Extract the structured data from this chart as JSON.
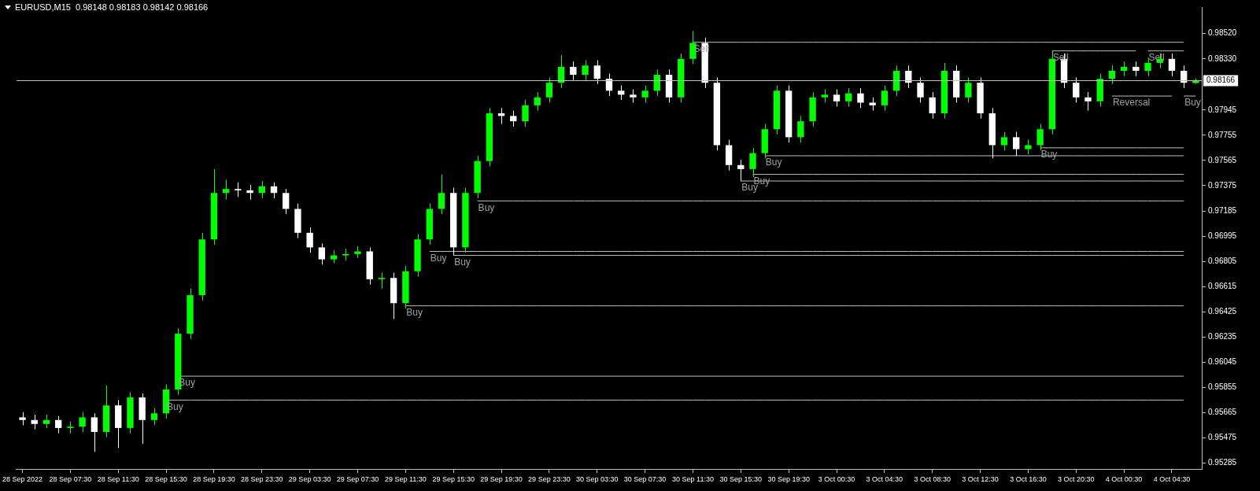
{
  "chart_data": {
    "type": "candlestick",
    "title": "EURUSD,M15  0.98148 0.98183 0.98142 0.98166",
    "categories": [
      "28 Sep 2022",
      null,
      null,
      null,
      "28 Sep 07:30",
      null,
      null,
      null,
      "28 Sep 11:30",
      null,
      null,
      null,
      "28 Sep 15:30",
      null,
      null,
      null,
      "28 Sep 19:30",
      null,
      null,
      null,
      "28 Sep 23:30",
      null,
      null,
      null,
      "29 Sep 03:30",
      null,
      null,
      null,
      "29 Sep 07:30",
      null,
      null,
      null,
      "29 Sep 11:30",
      null,
      null,
      null,
      "29 Sep 15:30",
      null,
      null,
      null,
      "29 Sep 19:30",
      null,
      null,
      null,
      "29 Sep 23:30",
      null,
      null,
      null,
      "30 Sep 03:30",
      null,
      null,
      null,
      "30 Sep 07:30",
      null,
      null,
      null,
      "30 Sep 11:30",
      null,
      null,
      null,
      "30 Sep 15:30",
      null,
      null,
      null,
      "30 Sep 19:30",
      null,
      null,
      null,
      "3 Oct 00:30",
      null,
      null,
      null,
      "3 Oct 04:30",
      null,
      null,
      null,
      "3 Oct 08:30",
      null,
      null,
      null,
      "3 Oct 12:30",
      null,
      null,
      null,
      "3 Oct 16:30",
      null,
      null,
      null,
      "3 Oct 20:30",
      null,
      null,
      null,
      "4 Oct 00:30",
      null,
      null,
      null,
      "4 Oct 04:30",
      null,
      null
    ],
    "ohlc": [
      [
        0.9563,
        0.9567,
        0.9557,
        0.9561
      ],
      [
        0.9561,
        0.9565,
        0.9554,
        0.9558
      ],
      [
        0.9558,
        0.9565,
        0.9555,
        0.9561
      ],
      [
        0.9561,
        0.9564,
        0.9551,
        0.9555
      ],
      [
        0.9555,
        0.956,
        0.9551,
        0.9556
      ],
      [
        0.9556,
        0.9567,
        0.9552,
        0.9563
      ],
      [
        0.9563,
        0.9566,
        0.9537,
        0.9552
      ],
      [
        0.9552,
        0.9587,
        0.9548,
        0.9572
      ],
      [
        0.9572,
        0.9576,
        0.954,
        0.9555
      ],
      [
        0.9555,
        0.9582,
        0.9551,
        0.9578
      ],
      [
        0.9578,
        0.9581,
        0.9543,
        0.9561
      ],
      [
        0.9561,
        0.957,
        0.9557,
        0.9566
      ],
      [
        0.9566,
        0.9588,
        0.9562,
        0.9584
      ],
      [
        0.9584,
        0.963,
        0.958,
        0.9626
      ],
      [
        0.9626,
        0.966,
        0.9622,
        0.9655
      ],
      [
        0.9655,
        0.9702,
        0.9651,
        0.9697
      ],
      [
        0.9697,
        0.975,
        0.9693,
        0.9732
      ],
      [
        0.9732,
        0.9742,
        0.9727,
        0.9735
      ],
      [
        0.9735,
        0.974,
        0.9729,
        0.9734
      ],
      [
        0.9734,
        0.9738,
        0.9727,
        0.9732
      ],
      [
        0.9732,
        0.9741,
        0.9728,
        0.9737
      ],
      [
        0.9737,
        0.974,
        0.9728,
        0.9732
      ],
      [
        0.9732,
        0.9735,
        0.9716,
        0.972
      ],
      [
        0.972,
        0.9724,
        0.9698,
        0.9702
      ],
      [
        0.9702,
        0.9706,
        0.9687,
        0.9691
      ],
      [
        0.9691,
        0.9694,
        0.9678,
        0.9682
      ],
      [
        0.9682,
        0.9689,
        0.9679,
        0.9685
      ],
      [
        0.9685,
        0.969,
        0.9681,
        0.9686
      ],
      [
        0.9686,
        0.9692,
        0.9683,
        0.9688
      ],
      [
        0.9688,
        0.9691,
        0.9663,
        0.9667
      ],
      [
        0.9667,
        0.9672,
        0.966,
        0.9668
      ],
      [
        0.9668,
        0.9672,
        0.9637,
        0.9649
      ],
      [
        0.9649,
        0.9677,
        0.9645,
        0.9673
      ],
      [
        0.9673,
        0.9701,
        0.9669,
        0.9697
      ],
      [
        0.9697,
        0.9724,
        0.9693,
        0.972
      ],
      [
        0.972,
        0.9746,
        0.9716,
        0.9732
      ],
      [
        0.9732,
        0.9736,
        0.9685,
        0.9691
      ],
      [
        0.9691,
        0.9736,
        0.9687,
        0.9732
      ],
      [
        0.9732,
        0.976,
        0.9728,
        0.9756
      ],
      [
        0.9756,
        0.9796,
        0.9752,
        0.9792
      ],
      [
        0.9792,
        0.9796,
        0.9784,
        0.979
      ],
      [
        0.979,
        0.9794,
        0.9782,
        0.9786
      ],
      [
        0.9786,
        0.9802,
        0.9782,
        0.9798
      ],
      [
        0.9798,
        0.9808,
        0.9794,
        0.9804
      ],
      [
        0.9804,
        0.9819,
        0.98,
        0.9815
      ],
      [
        0.9815,
        0.9836,
        0.9811,
        0.9827
      ],
      [
        0.9827,
        0.9831,
        0.9817,
        0.9821
      ],
      [
        0.9821,
        0.9832,
        0.9817,
        0.9828
      ],
      [
        0.9828,
        0.9832,
        0.9814,
        0.9818
      ],
      [
        0.9818,
        0.9822,
        0.9805,
        0.9809
      ],
      [
        0.9809,
        0.9813,
        0.9802,
        0.9806
      ],
      [
        0.9806,
        0.981,
        0.98,
        0.9804
      ],
      [
        0.9804,
        0.9813,
        0.98,
        0.9809
      ],
      [
        0.9809,
        0.9825,
        0.9805,
        0.9821
      ],
      [
        0.9821,
        0.9825,
        0.98,
        0.9804
      ],
      [
        0.9804,
        0.9837,
        0.98,
        0.9833
      ],
      [
        0.9833,
        0.9854,
        0.9829,
        0.9845
      ],
      [
        0.9845,
        0.9849,
        0.9811,
        0.9815
      ],
      [
        0.9815,
        0.9819,
        0.9764,
        0.9768
      ],
      [
        0.9768,
        0.9772,
        0.9749,
        0.9753
      ],
      [
        0.9753,
        0.9757,
        0.9741,
        0.975
      ],
      [
        0.975,
        0.9766,
        0.9744,
        0.9762
      ],
      [
        0.9762,
        0.9784,
        0.9758,
        0.978
      ],
      [
        0.978,
        0.9813,
        0.9776,
        0.9809
      ],
      [
        0.9809,
        0.9813,
        0.977,
        0.9774
      ],
      [
        0.9774,
        0.979,
        0.977,
        0.9786
      ],
      [
        0.9786,
        0.9808,
        0.9782,
        0.9804
      ],
      [
        0.9804,
        0.981,
        0.98,
        0.9806
      ],
      [
        0.9806,
        0.981,
        0.9797,
        0.9801
      ],
      [
        0.9801,
        0.9811,
        0.9797,
        0.9807
      ],
      [
        0.9807,
        0.9811,
        0.9796,
        0.98
      ],
      [
        0.98,
        0.9804,
        0.9794,
        0.9798
      ],
      [
        0.9798,
        0.9813,
        0.9794,
        0.9809
      ],
      [
        0.9809,
        0.9828,
        0.9805,
        0.9824
      ],
      [
        0.9824,
        0.9828,
        0.9811,
        0.9815
      ],
      [
        0.9815,
        0.9819,
        0.98,
        0.9804
      ],
      [
        0.9804,
        0.9808,
        0.9788,
        0.9792
      ],
      [
        0.9792,
        0.983,
        0.9788,
        0.9824
      ],
      [
        0.9824,
        0.9828,
        0.98,
        0.9804
      ],
      [
        0.9804,
        0.9819,
        0.98,
        0.9815
      ],
      [
        0.9815,
        0.9819,
        0.9788,
        0.9792
      ],
      [
        0.9792,
        0.9796,
        0.9758,
        0.9768
      ],
      [
        0.9768,
        0.9778,
        0.9764,
        0.9774
      ],
      [
        0.9774,
        0.9778,
        0.976,
        0.9765
      ],
      [
        0.9765,
        0.9772,
        0.9761,
        0.9768
      ],
      [
        0.9768,
        0.9784,
        0.9764,
        0.978
      ],
      [
        0.978,
        0.9839,
        0.9776,
        0.9833
      ],
      [
        0.9833,
        0.9837,
        0.9811,
        0.9815
      ],
      [
        0.9815,
        0.9819,
        0.98,
        0.9804
      ],
      [
        0.9804,
        0.9808,
        0.9794,
        0.9801
      ],
      [
        0.9801,
        0.9822,
        0.9797,
        0.9818
      ],
      [
        0.9818,
        0.9828,
        0.9814,
        0.9824
      ],
      [
        0.9824,
        0.9831,
        0.982,
        0.9827
      ],
      [
        0.9827,
        0.9831,
        0.982,
        0.9824
      ],
      [
        0.9824,
        0.9834,
        0.982,
        0.983
      ],
      [
        0.983,
        0.9837,
        0.9826,
        0.9833
      ],
      [
        0.9833,
        0.9837,
        0.982,
        0.9824
      ],
      [
        0.9824,
        0.9828,
        0.9811,
        0.9815
      ],
      [
        0.98148,
        0.98183,
        0.98142,
        0.98166
      ]
    ],
    "colors": [
      "#ffffff",
      "#ffffff",
      "#00ff00",
      "#ffffff",
      "#00ff00",
      "#00ff00",
      "#ffffff",
      "#00ff00",
      "#ffffff",
      "#00ff00",
      "#ffffff",
      "#00ff00",
      "#00ff00",
      "#00ff00",
      "#00ff00",
      "#00ff00",
      "#00ff00",
      "#00ff00",
      "#ffffff",
      "#ffffff",
      "#00ff00",
      "#ffffff",
      "#ffffff",
      "#ffffff",
      "#ffffff",
      "#ffffff",
      "#00ff00",
      "#00ff00",
      "#00ff00",
      "#ffffff",
      "#00ff00",
      "#ffffff",
      "#00ff00",
      "#00ff00",
      "#00ff00",
      "#00ff00",
      "#ffffff",
      "#00ff00",
      "#00ff00",
      "#00ff00",
      "#ffffff",
      "#ffffff",
      "#00ff00",
      "#00ff00",
      "#00ff00",
      "#00ff00",
      "#ffffff",
      "#00ff00",
      "#ffffff",
      "#ffffff",
      "#ffffff",
      "#ffffff",
      "#00ff00",
      "#00ff00",
      "#ffffff",
      "#00ff00",
      "#00ff00",
      "#ffffff",
      "#ffffff",
      "#ffffff",
      "#ffffff",
      "#00ff00",
      "#00ff00",
      "#00ff00",
      "#ffffff",
      "#00ff00",
      "#00ff00",
      "#00ff00",
      "#ffffff",
      "#00ff00",
      "#ffffff",
      "#ffffff",
      "#00ff00",
      "#00ff00",
      "#ffffff",
      "#ffffff",
      "#ffffff",
      "#00ff00",
      "#ffffff",
      "#00ff00",
      "#ffffff",
      "#ffffff",
      "#00ff00",
      "#ffffff",
      "#00ff00",
      "#00ff00",
      "#00ff00",
      "#ffffff",
      "#ffffff",
      "#ffffff",
      "#00ff00",
      "#00ff00",
      "#00ff00",
      "#ffffff",
      "#00ff00",
      "#00ff00",
      "#ffffff",
      "#ffffff",
      "#00ff00"
    ],
    "series": [
      {
        "type": "line",
        "name": "Sell",
        "color": "#c0c0c0",
        "values": [
          null,
          null,
          null,
          null,
          null,
          null,
          null,
          null,
          null,
          null,
          null,
          null,
          null,
          null,
          null,
          null,
          null,
          null,
          null,
          null,
          null,
          null,
          null,
          null,
          null,
          null,
          null,
          null,
          null,
          null,
          null,
          null,
          null,
          null,
          null,
          null,
          null,
          null,
          null,
          null,
          null,
          null,
          null,
          null,
          null,
          null,
          null,
          null,
          null,
          null,
          null,
          null,
          null,
          null,
          null,
          null,
          0.98455,
          0.98455,
          0.98455,
          0.98455,
          0.98455,
          0.98455,
          0.98455,
          0.98455,
          0.98455,
          0.98455,
          0.98455,
          0.98455,
          0.98455,
          0.98455,
          0.98455,
          0.98455,
          0.98455,
          0.98455,
          0.98455,
          0.98455,
          0.98455,
          0.98455,
          0.98455,
          0.98455,
          0.98455,
          0.98455,
          0.98455,
          0.98455,
          0.98455,
          0.98455,
          0.98455,
          0.98455,
          0.98455,
          0.98455,
          0.98455,
          0.98455,
          0.98455,
          0.98455,
          0.98455,
          0.98455,
          0.98455,
          0.98455,
          null
        ]
      },
      {
        "type": "line",
        "name": "Sell",
        "color": "#c0c0c0",
        "values": [
          null,
          null,
          null,
          null,
          null,
          null,
          null,
          null,
          null,
          null,
          null,
          null,
          null,
          null,
          null,
          null,
          null,
          null,
          null,
          null,
          null,
          null,
          null,
          null,
          null,
          null,
          null,
          null,
          null,
          null,
          null,
          null,
          null,
          null,
          null,
          null,
          null,
          null,
          null,
          null,
          null,
          null,
          null,
          null,
          null,
          null,
          null,
          null,
          null,
          null,
          null,
          null,
          null,
          null,
          null,
          null,
          null,
          null,
          null,
          null,
          null,
          null,
          null,
          null,
          null,
          null,
          null,
          null,
          null,
          null,
          null,
          null,
          null,
          null,
          null,
          null,
          null,
          null,
          null,
          null,
          null,
          null,
          null,
          null,
          null,
          null,
          0.9839,
          0.9839,
          0.9839,
          0.9839,
          0.9839,
          0.9839,
          0.9839,
          0.9839,
          null,
          null,
          null,
          null,
          null
        ]
      },
      {
        "type": "line",
        "name": "Sell",
        "color": "#c0c0c0",
        "values": [
          null,
          null,
          null,
          null,
          null,
          null,
          null,
          null,
          null,
          null,
          null,
          null,
          null,
          null,
          null,
          null,
          null,
          null,
          null,
          null,
          null,
          null,
          null,
          null,
          null,
          null,
          null,
          null,
          null,
          null,
          null,
          null,
          null,
          null,
          null,
          null,
          null,
          null,
          null,
          null,
          null,
          null,
          null,
          null,
          null,
          null,
          null,
          null,
          null,
          null,
          null,
          null,
          null,
          null,
          null,
          null,
          null,
          null,
          null,
          null,
          null,
          null,
          null,
          null,
          null,
          null,
          null,
          null,
          null,
          null,
          null,
          null,
          null,
          null,
          null,
          null,
          null,
          null,
          null,
          null,
          null,
          null,
          null,
          null,
          null,
          null,
          null,
          null,
          null,
          null,
          null,
          null,
          null,
          null,
          0.9839,
          0.9839,
          0.9839,
          0.9839,
          null
        ]
      },
      {
        "type": "line",
        "name": "Reversal",
        "color": "#c0c0c0",
        "values": [
          null,
          null,
          null,
          null,
          null,
          null,
          null,
          null,
          null,
          null,
          null,
          null,
          null,
          null,
          null,
          null,
          null,
          null,
          null,
          null,
          null,
          null,
          null,
          null,
          null,
          null,
          null,
          null,
          null,
          null,
          null,
          null,
          null,
          null,
          null,
          null,
          null,
          null,
          null,
          null,
          null,
          null,
          null,
          null,
          null,
          null,
          null,
          null,
          null,
          null,
          null,
          null,
          null,
          null,
          null,
          null,
          null,
          null,
          null,
          null,
          null,
          null,
          null,
          null,
          null,
          null,
          null,
          null,
          null,
          null,
          null,
          null,
          null,
          null,
          null,
          null,
          null,
          null,
          null,
          null,
          null,
          null,
          null,
          null,
          null,
          null,
          null,
          null,
          null,
          null,
          null,
          0.9805,
          0.9805,
          0.9805,
          0.9805,
          0.9805,
          0.9805,
          null,
          null
        ]
      },
      {
        "type": "line",
        "name": "Buy",
        "color": "#c0c0c0",
        "values": [
          null,
          null,
          null,
          null,
          null,
          null,
          null,
          null,
          null,
          null,
          null,
          null,
          null,
          null,
          null,
          null,
          null,
          null,
          null,
          null,
          null,
          null,
          null,
          null,
          null,
          null,
          null,
          null,
          null,
          null,
          null,
          null,
          null,
          null,
          null,
          null,
          null,
          null,
          null,
          null,
          null,
          null,
          null,
          null,
          null,
          null,
          null,
          null,
          null,
          null,
          null,
          null,
          null,
          null,
          null,
          null,
          null,
          null,
          null,
          null,
          null,
          null,
          null,
          null,
          null,
          null,
          null,
          null,
          null,
          null,
          null,
          null,
          null,
          null,
          null,
          null,
          null,
          null,
          null,
          null,
          null,
          null,
          null,
          null,
          null,
          null,
          null,
          null,
          null,
          null,
          null,
          null,
          null,
          null,
          null,
          null,
          null,
          0.9805,
          0.9805
        ]
      },
      {
        "type": "line",
        "name": "Buy",
        "color": "#c0c0c0",
        "values": [
          null,
          null,
          null,
          null,
          null,
          null,
          null,
          null,
          null,
          null,
          null,
          null,
          null,
          null,
          null,
          null,
          null,
          null,
          null,
          null,
          null,
          null,
          null,
          null,
          null,
          null,
          null,
          null,
          null,
          null,
          null,
          null,
          null,
          null,
          null,
          null,
          null,
          null,
          null,
          null,
          null,
          null,
          null,
          null,
          null,
          null,
          null,
          null,
          null,
          null,
          null,
          null,
          null,
          null,
          null,
          null,
          null,
          null,
          null,
          null,
          null,
          null,
          null,
          null,
          null,
          null,
          null,
          null,
          null,
          null,
          null,
          null,
          null,
          null,
          null,
          null,
          null,
          null,
          null,
          null,
          null,
          null,
          null,
          null,
          null,
          0.9766,
          0.9766,
          0.9766,
          0.9766,
          0.9766,
          0.9766,
          0.9766,
          0.9766,
          0.9766,
          0.9766,
          0.9766,
          0.9766,
          0.9766,
          null
        ]
      },
      {
        "type": "line",
        "name": "Buy",
        "color": "#c0c0c0",
        "values": [
          null,
          null,
          null,
          null,
          null,
          null,
          null,
          null,
          null,
          null,
          null,
          null,
          null,
          null,
          null,
          null,
          null,
          null,
          null,
          null,
          null,
          null,
          null,
          null,
          null,
          null,
          null,
          null,
          null,
          null,
          null,
          null,
          null,
          null,
          null,
          null,
          null,
          null,
          null,
          null,
          null,
          null,
          null,
          null,
          null,
          null,
          null,
          null,
          null,
          null,
          null,
          null,
          null,
          null,
          null,
          null,
          null,
          null,
          null,
          null,
          null,
          null,
          0.976,
          0.976,
          0.976,
          0.976,
          0.976,
          0.976,
          0.976,
          0.976,
          0.976,
          0.976,
          0.976,
          0.976,
          0.976,
          0.976,
          0.976,
          0.976,
          0.976,
          0.976,
          0.976,
          0.976,
          0.976,
          0.976,
          0.976,
          0.976,
          0.976,
          0.976,
          0.976,
          0.976,
          0.976,
          0.976,
          0.976,
          0.976,
          0.976,
          0.976,
          0.976,
          0.976,
          null
        ]
      },
      {
        "type": "line",
        "name": "Buy",
        "color": "#c0c0c0",
        "values": [
          null,
          null,
          null,
          null,
          null,
          null,
          null,
          null,
          null,
          null,
          null,
          null,
          null,
          null,
          null,
          null,
          null,
          null,
          null,
          null,
          null,
          null,
          null,
          null,
          null,
          null,
          null,
          null,
          null,
          null,
          null,
          null,
          null,
          null,
          null,
          null,
          null,
          null,
          null,
          null,
          null,
          null,
          null,
          null,
          null,
          null,
          null,
          null,
          null,
          null,
          null,
          null,
          null,
          null,
          null,
          null,
          null,
          null,
          null,
          null,
          null,
          0.9746,
          0.9746,
          0.9746,
          0.9746,
          0.9746,
          0.9746,
          0.9746,
          0.9746,
          0.9746,
          0.9746,
          0.9746,
          0.9746,
          0.9746,
          0.9746,
          0.9746,
          0.9746,
          0.9746,
          0.9746,
          0.9746,
          0.9746,
          0.9746,
          0.9746,
          0.9746,
          0.9746,
          0.9746,
          0.9746,
          0.9746,
          0.9746,
          0.9746,
          0.9746,
          0.9746,
          0.9746,
          0.9746,
          0.9746,
          0.9746,
          0.9746,
          0.9746,
          null
        ]
      },
      {
        "type": "line",
        "name": "Buy",
        "color": "#c0c0c0",
        "values": [
          null,
          null,
          null,
          null,
          null,
          null,
          null,
          null,
          null,
          null,
          null,
          null,
          null,
          null,
          null,
          null,
          null,
          null,
          null,
          null,
          null,
          null,
          null,
          null,
          null,
          null,
          null,
          null,
          null,
          null,
          null,
          null,
          null,
          null,
          null,
          null,
          null,
          null,
          null,
          null,
          null,
          null,
          null,
          null,
          null,
          null,
          null,
          null,
          null,
          null,
          null,
          null,
          null,
          null,
          null,
          null,
          null,
          null,
          null,
          null,
          0.9741,
          0.9741,
          0.9741,
          0.9741,
          0.9741,
          0.9741,
          0.9741,
          0.9741,
          0.9741,
          0.9741,
          0.9741,
          0.9741,
          0.9741,
          0.9741,
          0.9741,
          0.9741,
          0.9741,
          0.9741,
          0.9741,
          0.9741,
          0.9741,
          0.9741,
          0.9741,
          0.9741,
          0.9741,
          0.9741,
          0.9741,
          0.9741,
          0.9741,
          0.9741,
          0.9741,
          0.9741,
          0.9741,
          0.9741,
          0.9741,
          0.9741,
          0.9741,
          0.9741,
          null
        ]
      },
      {
        "type": "line",
        "name": "Buy",
        "color": "#c0c0c0",
        "values": [
          null,
          null,
          null,
          null,
          null,
          null,
          null,
          null,
          null,
          null,
          null,
          null,
          null,
          null,
          null,
          null,
          null,
          null,
          null,
          null,
          null,
          null,
          null,
          null,
          null,
          null,
          null,
          null,
          null,
          null,
          null,
          null,
          null,
          null,
          null,
          null,
          null,
          null,
          0.9726,
          0.9726,
          0.9726,
          0.9726,
          0.9726,
          0.9726,
          0.9726,
          0.9726,
          0.9726,
          0.9726,
          0.9726,
          0.9726,
          0.9726,
          0.9726,
          0.9726,
          0.9726,
          0.9726,
          0.9726,
          0.9726,
          0.9726,
          0.9726,
          0.9726,
          0.9726,
          0.9726,
          0.9726,
          0.9726,
          0.9726,
          0.9726,
          0.9726,
          0.9726,
          0.9726,
          0.9726,
          0.9726,
          0.9726,
          0.9726,
          0.9726,
          0.9726,
          0.9726,
          0.9726,
          0.9726,
          0.9726,
          0.9726,
          0.9726,
          0.9726,
          0.9726,
          0.9726,
          0.9726,
          0.9726,
          0.9726,
          0.9726,
          0.9726,
          0.9726,
          0.9726,
          0.9726,
          0.9726,
          0.9726,
          0.9726,
          0.9726,
          0.9726,
          0.9726,
          null
        ]
      },
      {
        "type": "line",
        "name": "Buy",
        "color": "#c0c0c0",
        "values": [
          null,
          null,
          null,
          null,
          null,
          null,
          null,
          null,
          null,
          null,
          null,
          null,
          null,
          null,
          null,
          null,
          null,
          null,
          null,
          null,
          null,
          null,
          null,
          null,
          null,
          null,
          null,
          null,
          null,
          null,
          null,
          null,
          null,
          null,
          0.9688,
          0.9688,
          0.9688,
          0.9688,
          0.9688,
          0.9688,
          0.9688,
          0.9688,
          0.9688,
          0.9688,
          0.9688,
          0.9688,
          0.9688,
          0.9688,
          0.9688,
          0.9688,
          0.9688,
          0.9688,
          0.9688,
          0.9688,
          0.9688,
          0.9688,
          0.9688,
          0.9688,
          0.9688,
          0.9688,
          0.9688,
          0.9688,
          0.9688,
          0.9688,
          0.9688,
          0.9688,
          0.9688,
          0.9688,
          0.9688,
          0.9688,
          0.9688,
          0.9688,
          0.9688,
          0.9688,
          0.9688,
          0.9688,
          0.9688,
          0.9688,
          0.9688,
          0.9688,
          0.9688,
          0.9688,
          0.9688,
          0.9688,
          0.9688,
          0.9688,
          0.9688,
          0.9688,
          0.9688,
          0.9688,
          0.9688,
          0.9688,
          0.9688,
          0.9688,
          0.9688,
          0.9688,
          0.9688,
          0.9688,
          null
        ]
      },
      {
        "type": "line",
        "name": "Buy",
        "color": "#c0c0c0",
        "values": [
          null,
          null,
          null,
          null,
          null,
          null,
          null,
          null,
          null,
          null,
          null,
          null,
          null,
          null,
          null,
          null,
          null,
          null,
          null,
          null,
          null,
          null,
          null,
          null,
          null,
          null,
          null,
          null,
          null,
          null,
          null,
          null,
          null,
          null,
          null,
          null,
          0.9685,
          0.9685,
          0.9685,
          0.9685,
          0.9685,
          0.9685,
          0.9685,
          0.9685,
          0.9685,
          0.9685,
          0.9685,
          0.9685,
          0.9685,
          0.9685,
          0.9685,
          0.9685,
          0.9685,
          0.9685,
          0.9685,
          0.9685,
          0.9685,
          0.9685,
          0.9685,
          0.9685,
          0.9685,
          0.9685,
          0.9685,
          0.9685,
          0.9685,
          0.9685,
          0.9685,
          0.9685,
          0.9685,
          0.9685,
          0.9685,
          0.9685,
          0.9685,
          0.9685,
          0.9685,
          0.9685,
          0.9685,
          0.9685,
          0.9685,
          0.9685,
          0.9685,
          0.9685,
          0.9685,
          0.9685,
          0.9685,
          0.9685,
          0.9685,
          0.9685,
          0.9685,
          0.9685,
          0.9685,
          0.9685,
          0.9685,
          0.9685,
          0.9685,
          0.9685,
          0.9685,
          0.9685,
          null
        ]
      },
      {
        "type": "line",
        "name": "Buy",
        "color": "#c0c0c0",
        "values": [
          null,
          null,
          null,
          null,
          null,
          null,
          null,
          null,
          null,
          null,
          null,
          null,
          null,
          null,
          null,
          null,
          null,
          null,
          null,
          null,
          null,
          null,
          null,
          null,
          null,
          null,
          null,
          null,
          null,
          null,
          null,
          null,
          0.9647,
          0.9647,
          0.9647,
          0.9647,
          0.9647,
          0.9647,
          0.9647,
          0.9647,
          0.9647,
          0.9647,
          0.9647,
          0.9647,
          0.9647,
          0.9647,
          0.9647,
          0.9647,
          0.9647,
          0.9647,
          0.9647,
          0.9647,
          0.9647,
          0.9647,
          0.9647,
          0.9647,
          0.9647,
          0.9647,
          0.9647,
          0.9647,
          0.9647,
          0.9647,
          0.9647,
          0.9647,
          0.9647,
          0.9647,
          0.9647,
          0.9647,
          0.9647,
          0.9647,
          0.9647,
          0.9647,
          0.9647,
          0.9647,
          0.9647,
          0.9647,
          0.9647,
          0.9647,
          0.9647,
          0.9647,
          0.9647,
          0.9647,
          0.9647,
          0.9647,
          0.9647,
          0.9647,
          0.9647,
          0.9647,
          0.9647,
          0.9647,
          0.9647,
          0.9647,
          0.9647,
          0.9647,
          0.9647,
          0.9647,
          0.9647,
          0.9647,
          null
        ]
      },
      {
        "type": "line",
        "name": "Buy",
        "color": "#c0c0c0",
        "values": [
          null,
          null,
          null,
          null,
          null,
          null,
          null,
          null,
          null,
          null,
          null,
          null,
          null,
          0.9594,
          0.9594,
          0.9594,
          0.9594,
          0.9594,
          0.9594,
          0.9594,
          0.9594,
          0.9594,
          0.9594,
          0.9594,
          0.9594,
          0.9594,
          0.9594,
          0.9594,
          0.9594,
          0.9594,
          0.9594,
          0.9594,
          0.9594,
          0.9594,
          0.9594,
          0.9594,
          0.9594,
          0.9594,
          0.9594,
          0.9594,
          0.9594,
          0.9594,
          0.9594,
          0.9594,
          0.9594,
          0.9594,
          0.9594,
          0.9594,
          0.9594,
          0.9594,
          0.9594,
          0.9594,
          0.9594,
          0.9594,
          0.9594,
          0.9594,
          0.9594,
          0.9594,
          0.9594,
          0.9594,
          0.9594,
          0.9594,
          0.9594,
          0.9594,
          0.9594,
          0.9594,
          0.9594,
          0.9594,
          0.9594,
          0.9594,
          0.9594,
          0.9594,
          0.9594,
          0.9594,
          0.9594,
          0.9594,
          0.9594,
          0.9594,
          0.9594,
          0.9594,
          0.9594,
          0.9594,
          0.9594,
          0.9594,
          0.9594,
          0.9594,
          0.9594,
          0.9594,
          0.9594,
          0.9594,
          0.9594,
          0.9594,
          0.9594,
          0.9594,
          0.9594,
          0.9594,
          0.9594,
          0.9594,
          null
        ]
      },
      {
        "type": "line",
        "name": "Buy",
        "color": "#c0c0c0",
        "values": [
          null,
          null,
          null,
          null,
          null,
          null,
          null,
          null,
          null,
          null,
          null,
          null,
          0.9576,
          0.9576,
          0.9576,
          0.9576,
          0.9576,
          0.9576,
          0.9576,
          0.9576,
          0.9576,
          0.9576,
          0.9576,
          0.9576,
          0.9576,
          0.9576,
          0.9576,
          0.9576,
          0.9576,
          0.9576,
          0.9576,
          0.9576,
          0.9576,
          0.9576,
          0.9576,
          0.9576,
          0.9576,
          0.9576,
          0.9576,
          0.9576,
          0.9576,
          0.9576,
          0.9576,
          0.9576,
          0.9576,
          0.9576,
          0.9576,
          0.9576,
          0.9576,
          0.9576,
          0.9576,
          0.9576,
          0.9576,
          0.9576,
          0.9576,
          0.9576,
          0.9576,
          0.9576,
          0.9576,
          0.9576,
          0.9576,
          0.9576,
          0.9576,
          0.9576,
          0.9576,
          0.9576,
          0.9576,
          0.9576,
          0.9576,
          0.9576,
          0.9576,
          0.9576,
          0.9576,
          0.9576,
          0.9576,
          0.9576,
          0.9576,
          0.9576,
          0.9576,
          0.9576,
          0.9576,
          0.9576,
          0.9576,
          0.9576,
          0.9576,
          0.9576,
          0.9576,
          0.9576,
          0.9576,
          0.9576,
          0.9576,
          0.9576,
          0.9576,
          0.9576,
          0.9576,
          0.9576,
          0.9576,
          0.9576,
          null
        ]
      }
    ],
    "ref_lines": [
      {
        "axis": "y",
        "value": 0.98166,
        "label": "0.98166",
        "color": "#c0c0c0"
      }
    ],
    "ylim": [
      0.9524,
      0.9872
    ],
    "yticks": [
      {
        "value": 0.9852,
        "label": "0.98520"
      },
      {
        "value": 0.9833,
        "label": "0.98330"
      },
      {
        "value": 0.97945,
        "label": "0.97945"
      },
      {
        "value": 0.97755,
        "label": "0.97755"
      },
      {
        "value": 0.97565,
        "label": "0.97565"
      },
      {
        "value": 0.97375,
        "label": "0.97375"
      },
      {
        "value": 0.97185,
        "label": "0.97185"
      },
      {
        "value": 0.96995,
        "label": "0.96995"
      },
      {
        "value": 0.96805,
        "label": "0.96805"
      },
      {
        "value": 0.96615,
        "label": "0.96615"
      },
      {
        "value": 0.96425,
        "label": "0.96425"
      },
      {
        "value": 0.96235,
        "label": "0.96235"
      },
      {
        "value": 0.96045,
        "label": "0.96045"
      },
      {
        "value": 0.95855,
        "label": "0.95855"
      },
      {
        "value": 0.95665,
        "label": "0.95665"
      },
      {
        "value": 0.95475,
        "label": "0.95475"
      },
      {
        "value": 0.95285,
        "label": "0.95285"
      }
    ]
  }
}
